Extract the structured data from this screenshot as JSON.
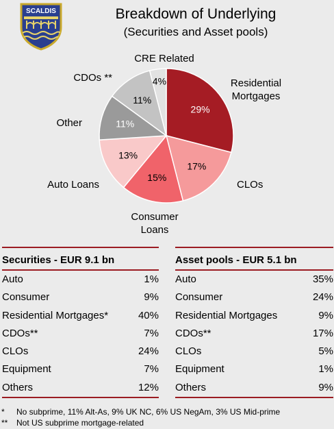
{
  "logo": {
    "text": "SCALDIS"
  },
  "header": {
    "title": "Breakdown of Underlying",
    "subtitle": "(Securities and Asset pools)"
  },
  "chart_data": {
    "type": "pie",
    "title": "Breakdown of Underlying",
    "subtitle": "(Securities and Asset pools)",
    "slices": [
      {
        "label": "Residential Mortgages",
        "value": 29,
        "display": "29%",
        "color": "#a51c24",
        "text_color": "#ffffff",
        "label_lines": [
          "Residential",
          "Mortgages"
        ]
      },
      {
        "label": "CLOs",
        "value": 17,
        "display": "17%",
        "color": "#f59a9b",
        "text_color": "#000000",
        "label_lines": [
          "CLOs"
        ]
      },
      {
        "label": "Consumer Loans",
        "value": 15,
        "display": "15%",
        "color": "#f0636a",
        "text_color": "#000000",
        "label_lines": [
          "Consumer",
          "Loans"
        ]
      },
      {
        "label": "Auto Loans",
        "value": 13,
        "display": "13%",
        "color": "#f9c9c9",
        "text_color": "#000000",
        "label_lines": [
          "Auto Loans"
        ]
      },
      {
        "label": "Other",
        "value": 11,
        "display": "11%",
        "color": "#9a9a9a",
        "text_color": "#ffffff",
        "label_lines": [
          "Other"
        ]
      },
      {
        "label": "CDOs **",
        "value": 11,
        "display": "11%",
        "color": "#c3c3c3",
        "text_color": "#000000",
        "label_lines": [
          "CDOs **"
        ]
      },
      {
        "label": "CRE Related",
        "value": 4,
        "display": "4%",
        "color": "#e2e2e2",
        "text_color": "#000000",
        "label_lines": [
          "CRE Related"
        ]
      }
    ]
  },
  "securities": {
    "heading": "Securities - EUR 9.1 bn",
    "rows": [
      {
        "label": "Auto",
        "value": "1%"
      },
      {
        "label": "Consumer",
        "value": "9%"
      },
      {
        "label": "Residential Mortgages*",
        "value": "40%"
      },
      {
        "label": "CDOs**",
        "value": "7%"
      },
      {
        "label": "CLOs",
        "value": "24%"
      },
      {
        "label": "Equipment",
        "value": "7%"
      },
      {
        "label": "Others",
        "value": "12%"
      }
    ]
  },
  "asset_pools": {
    "heading": "Asset pools - EUR 5.1 bn",
    "rows": [
      {
        "label": "Auto",
        "value": "35%"
      },
      {
        "label": "Consumer",
        "value": "24%"
      },
      {
        "label": "Residential Mortgages",
        "value": "9%"
      },
      {
        "label": "CDOs**",
        "value": "17%"
      },
      {
        "label": "CLOs",
        "value": "5%"
      },
      {
        "label": "Equipment",
        "value": "1%"
      },
      {
        "label": "Others",
        "value": "9%"
      }
    ]
  },
  "footnotes": [
    {
      "mark": "*",
      "text": "No subprime, 11% Alt-As, 9% UK NC, 6% US NegAm, 3% US Mid-prime"
    },
    {
      "mark": "**",
      "text": "Not US subprime mortgage-related"
    }
  ]
}
